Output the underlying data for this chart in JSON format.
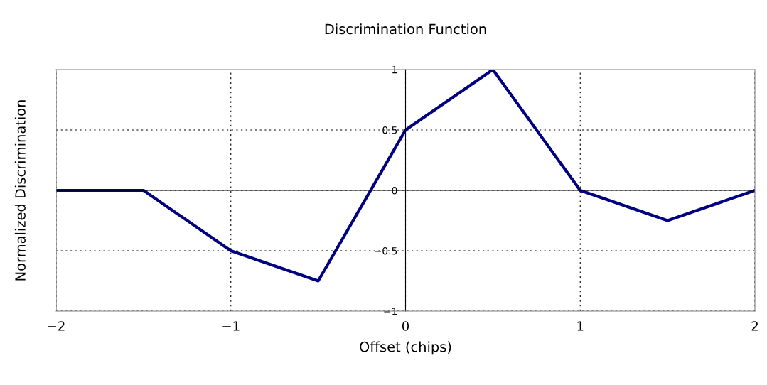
{
  "chart_data": {
    "type": "line",
    "title": "Discrimination Function",
    "xlabel": "Offset (chips)",
    "ylabel": "Normalized Discrimination",
    "x": [
      -2,
      -1.5,
      -1,
      -0.5,
      0,
      0.5,
      1,
      1.5,
      2
    ],
    "series": [
      {
        "color": "#000080",
        "values": [
          0,
          0,
          -0.5,
          -0.75,
          0.5,
          1,
          0,
          -0.25,
          0
        ]
      }
    ],
    "xlim": [
      -2,
      2
    ],
    "ylim": [
      -1,
      1
    ],
    "xticks": [
      -2,
      -1,
      0,
      1,
      2
    ],
    "yticks": [
      -1,
      -0.5,
      0,
      0.5,
      1
    ],
    "grid": true,
    "marker": "none",
    "line_style": "solid"
  }
}
